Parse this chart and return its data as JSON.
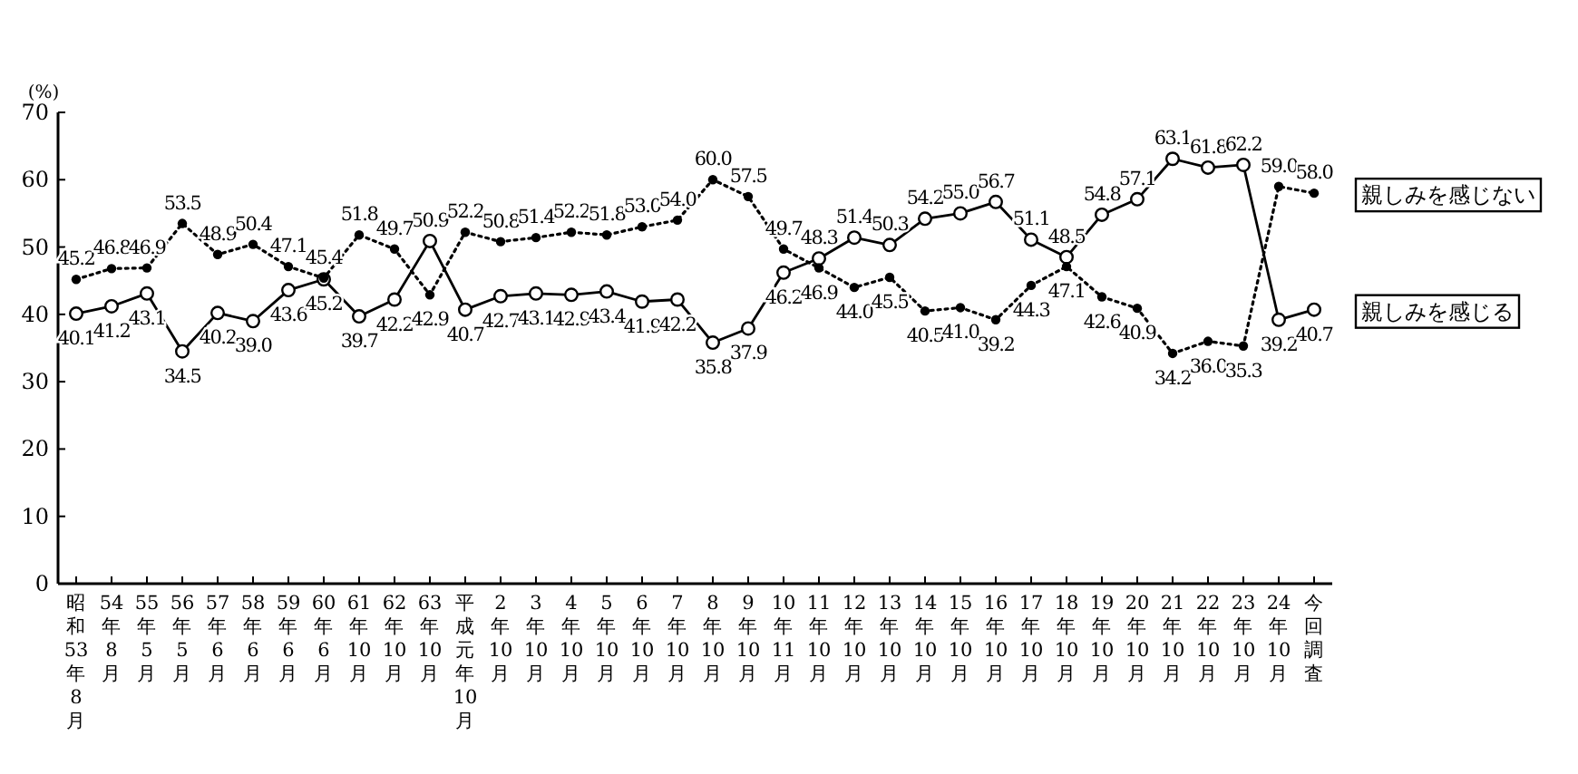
{
  "chart_data": {
    "type": "line",
    "ylabel": "(%)",
    "ylim": [
      0,
      70
    ],
    "yticks": [
      0,
      10,
      20,
      30,
      40,
      50,
      60,
      70
    ],
    "grid": false,
    "categories": [
      "昭和53年8月",
      "54年8月",
      "55年5月",
      "56年5月",
      "57年6月",
      "58年6月",
      "59年6月",
      "60年6月",
      "61年10月",
      "62年10月",
      "63年10月",
      "平成元年10月",
      "2年10月",
      "3年10月",
      "4年10月",
      "5年10月",
      "6年10月",
      "7年10月",
      "8年10月",
      "9年10月",
      "10年11月",
      "11年10月",
      "12年10月",
      "13年10月",
      "14年10月",
      "15年10月",
      "16年10月",
      "17年10月",
      "18年10月",
      "19年10月",
      "20年10月",
      "21年10月",
      "22年10月",
      "23年10月",
      "24年10月",
      "今回調査"
    ],
    "series": [
      {
        "name": "親しみを感じる",
        "color": "#000000",
        "marker": "circle",
        "line_style": "solid",
        "values": [
          40.1,
          41.2,
          43.1,
          34.5,
          40.2,
          39.0,
          43.6,
          45.2,
          39.7,
          42.2,
          50.9,
          40.7,
          42.7,
          43.1,
          42.9,
          43.4,
          41.9,
          42.2,
          35.8,
          37.9,
          46.2,
          48.3,
          51.4,
          50.3,
          54.2,
          55.0,
          56.7,
          51.1,
          48.5,
          54.8,
          57.1,
          63.1,
          61.8,
          62.2,
          39.2,
          40.7
        ],
        "value_labels": [
          "40.1",
          "41.2",
          "43.1",
          "34.5",
          "40.2",
          "39.0",
          "43.6",
          "45.2",
          "39.7",
          "42.2",
          "50.9",
          "40.7",
          "42.7",
          "43.1",
          "42.9",
          "43.4",
          "41.9",
          "42.2",
          "35.8",
          "37.9",
          "46.2",
          "48.3",
          "51.4",
          "50.3",
          "54.2",
          "55.0",
          "56.7",
          "51.1",
          "48.5",
          "54.8",
          "57.1",
          "63.1",
          "61.8",
          "62.2",
          "39.2",
          "40.7"
        ]
      },
      {
        "name": "親しみを感じない",
        "color": "#000000",
        "marker": "circle",
        "line_style": "dotted",
        "values": [
          45.2,
          46.8,
          46.9,
          53.5,
          48.9,
          50.4,
          47.1,
          45.4,
          51.8,
          49.7,
          42.9,
          52.2,
          50.8,
          51.4,
          52.2,
          51.8,
          53.0,
          54.0,
          60.0,
          57.5,
          49.7,
          46.9,
          44.0,
          45.5,
          40.5,
          41.0,
          39.2,
          44.3,
          47.1,
          42.6,
          40.9,
          34.2,
          36.0,
          35.3,
          59.0,
          58.0
        ],
        "value_labels": [
          "45.2",
          "46.8",
          "46.9",
          "53.5",
          "48.9",
          "50.4",
          "47.1",
          "45.4",
          "51.8",
          "49.7",
          "42.9",
          "52.2",
          "50.8",
          "51.4",
          "52.2",
          "51.8",
          "53.0",
          "54.0",
          "60.0",
          "57.5",
          "49.7",
          "46.9",
          "44.0",
          "45.5",
          "40.5",
          "41.0",
          "39.2",
          "44.3",
          "47.1",
          "42.6",
          "40.9",
          "34.2",
          "36.0",
          "35.3",
          "59.0",
          "58.0"
        ]
      }
    ]
  }
}
